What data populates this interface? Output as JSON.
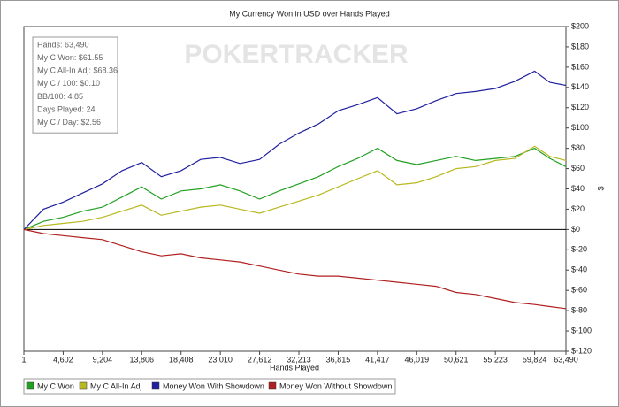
{
  "chart_data": {
    "type": "line",
    "title": "My Currency Won in USD over Hands Played",
    "x_label": "Hands Played",
    "y_label": "$",
    "watermark": "POKERTRACKER",
    "annotations": [
      "Hands: 63,490",
      "My C Won: $61.55",
      "My C All-In Adj: $68.36",
      "My C / 100: $0.10",
      "BB/100: 4.85",
      "Days Played: 24",
      "My C / Day: $2.56"
    ],
    "x": [
      1,
      2300,
      4602,
      6900,
      9204,
      11500,
      13806,
      16100,
      18408,
      20700,
      23010,
      25300,
      27612,
      29900,
      32213,
      34500,
      36815,
      39100,
      41417,
      43700,
      46019,
      48300,
      50621,
      52900,
      55223,
      57500,
      59824,
      61600,
      63490
    ],
    "series": [
      {
        "name": "My C Won",
        "color": "#22a022",
        "values": [
          0,
          8,
          12,
          18,
          22,
          32,
          42,
          30,
          38,
          40,
          44,
          38,
          30,
          38,
          45,
          52,
          62,
          70,
          80,
          68,
          64,
          68,
          72,
          68,
          70,
          72,
          80,
          70,
          62
        ]
      },
      {
        "name": "My C All-In Adj",
        "color": "#b8b820",
        "values": [
          0,
          4,
          6,
          8,
          12,
          18,
          24,
          14,
          18,
          22,
          24,
          20,
          16,
          22,
          28,
          34,
          42,
          50,
          58,
          44,
          46,
          52,
          60,
          62,
          68,
          70,
          82,
          72,
          68
        ]
      },
      {
        "name": "Money Won With Showdown",
        "color": "#2020a0",
        "values": [
          0,
          20,
          27,
          36,
          45,
          58,
          66,
          52,
          58,
          69,
          71,
          65,
          69,
          84,
          95,
          104,
          117,
          123,
          130,
          114,
          119,
          127,
          134,
          136,
          139,
          146,
          156,
          145,
          142
        ]
      },
      {
        "name": "Money Won Without Showdown",
        "color": "#b02020",
        "values": [
          0,
          -4,
          -6,
          -8,
          -10,
          -16,
          -22,
          -26,
          -24,
          -28,
          -30,
          -32,
          -36,
          -40,
          -44,
          -46,
          -46,
          -48,
          -50,
          -52,
          -54,
          -56,
          -62,
          -64,
          -68,
          -72,
          -74,
          -76,
          -78
        ]
      }
    ],
    "xlim": [
      1,
      63490
    ],
    "xticks": [
      1,
      {
        "value": 4602,
        "label": "4,602"
      },
      {
        "value": 9204,
        "label": "9,204"
      },
      {
        "value": 13806,
        "label": "13,806"
      },
      {
        "value": 18408,
        "label": "18,408"
      },
      {
        "value": 23010,
        "label": "23,010"
      },
      {
        "value": 27612,
        "label": "27,612"
      },
      {
        "value": 32213,
        "label": "32,213"
      },
      {
        "value": 36815,
        "label": "36,815"
      },
      {
        "value": 41417,
        "label": "41,417"
      },
      {
        "value": 46019,
        "label": "46,019"
      },
      {
        "value": 50621,
        "label": "50,621"
      },
      {
        "value": 55223,
        "label": "55,223"
      },
      {
        "value": 59824,
        "label": "59,824"
      },
      {
        "value": 63490,
        "label": "63,490"
      }
    ],
    "ylim": [
      -120,
      200
    ],
    "yticks": [
      {
        "value": -120,
        "label": "$-120"
      },
      {
        "value": -100,
        "label": "$-100"
      },
      {
        "value": -80,
        "label": "$-80"
      },
      {
        "value": -60,
        "label": "$-60"
      },
      {
        "value": -40,
        "label": "$-40"
      },
      {
        "value": -20,
        "label": "$-20"
      },
      {
        "value": 0,
        "label": "$0"
      },
      {
        "value": 20,
        "label": "$20"
      },
      {
        "value": 40,
        "label": "$40"
      },
      {
        "value": 60,
        "label": "$60"
      },
      {
        "value": 80,
        "label": "$80"
      },
      {
        "value": 100,
        "label": "$100"
      },
      {
        "value": 120,
        "label": "$120"
      },
      {
        "value": 140,
        "label": "$140"
      },
      {
        "value": 160,
        "label": "$160"
      },
      {
        "value": 180,
        "label": "$180"
      },
      {
        "value": 200,
        "label": "$200"
      }
    ],
    "grid": false,
    "zero_line": true,
    "legend": "bottom-left"
  }
}
